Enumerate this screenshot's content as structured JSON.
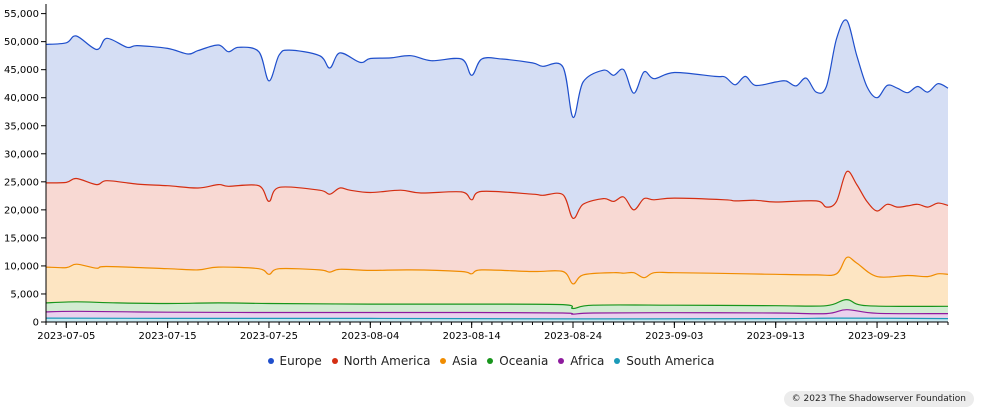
{
  "chart_data": {
    "type": "area",
    "stacked": true,
    "x_start": "2023-07-03",
    "x_end": "2023-09-30",
    "x_ticks": [
      "2023-07-05",
      "2023-07-15",
      "2023-07-25",
      "2023-08-04",
      "2023-08-14",
      "2023-08-24",
      "2023-09-03",
      "2023-09-13",
      "2023-09-23"
    ],
    "ylim": [
      0,
      56000
    ],
    "y_ticks": [
      0,
      5000,
      10000,
      15000,
      20000,
      25000,
      30000,
      35000,
      40000,
      45000,
      50000,
      55000
    ],
    "y_tick_labels": [
      "0",
      "5,000",
      "10,000",
      "15,000",
      "20,000",
      "25,000",
      "30,000",
      "35,000",
      "40,000",
      "45,000",
      "50,000",
      "55,000"
    ],
    "series": [
      {
        "name": "South America",
        "color": "#1b9ab8",
        "fill": "#c7e9f1",
        "points": [
          [
            "2023-07-03",
            700
          ],
          [
            "2023-07-15",
            650
          ],
          [
            "2023-08-04",
            650
          ],
          [
            "2023-08-24",
            550
          ],
          [
            "2023-09-13",
            600
          ],
          [
            "2023-09-19",
            700
          ],
          [
            "2023-09-30",
            600
          ]
        ]
      },
      {
        "name": "Africa",
        "color": "#8e1b9e",
        "fill": "#ead1ed",
        "points": [
          [
            "2023-07-03",
            1800
          ],
          [
            "2023-07-06",
            1900
          ],
          [
            "2023-07-15",
            1750
          ],
          [
            "2023-07-25",
            1700
          ],
          [
            "2023-08-04",
            1700
          ],
          [
            "2023-08-14",
            1700
          ],
          [
            "2023-08-23",
            1600
          ],
          [
            "2023-08-24",
            1400
          ],
          [
            "2023-08-26",
            1600
          ],
          [
            "2023-09-03",
            1650
          ],
          [
            "2023-09-13",
            1600
          ],
          [
            "2023-09-18",
            1500
          ],
          [
            "2023-09-20",
            2200
          ],
          [
            "2023-09-23",
            1550
          ],
          [
            "2023-09-30",
            1500
          ]
        ]
      },
      {
        "name": "Oceania",
        "color": "#18951c",
        "fill": "#d2ecd2",
        "points": [
          [
            "2023-07-03",
            3400
          ],
          [
            "2023-07-06",
            3600
          ],
          [
            "2023-07-10",
            3400
          ],
          [
            "2023-07-15",
            3300
          ],
          [
            "2023-07-20",
            3400
          ],
          [
            "2023-07-25",
            3300
          ],
          [
            "2023-08-04",
            3200
          ],
          [
            "2023-08-14",
            3200
          ],
          [
            "2023-08-23",
            3100
          ],
          [
            "2023-08-24",
            2400
          ],
          [
            "2023-08-26",
            3000
          ],
          [
            "2023-09-03",
            3000
          ],
          [
            "2023-09-13",
            2900
          ],
          [
            "2023-09-18",
            2900
          ],
          [
            "2023-09-20",
            4000
          ],
          [
            "2023-09-22",
            2900
          ],
          [
            "2023-09-30",
            2800
          ]
        ]
      },
      {
        "name": "Asia",
        "color": "#f08c00",
        "fill": "#fde5c2",
        "points": [
          [
            "2023-07-03",
            9800
          ],
          [
            "2023-07-05",
            9700
          ],
          [
            "2023-07-06",
            10300
          ],
          [
            "2023-07-08",
            9600
          ],
          [
            "2023-07-09",
            9900
          ],
          [
            "2023-07-15",
            9500
          ],
          [
            "2023-07-18",
            9300
          ],
          [
            "2023-07-20",
            9800
          ],
          [
            "2023-07-24",
            9500
          ],
          [
            "2023-07-25",
            8500
          ],
          [
            "2023-07-26",
            9500
          ],
          [
            "2023-07-30",
            9300
          ],
          [
            "2023-07-31",
            8900
          ],
          [
            "2023-08-01",
            9400
          ],
          [
            "2023-08-04",
            9200
          ],
          [
            "2023-08-08",
            9300
          ],
          [
            "2023-08-13",
            9000
          ],
          [
            "2023-08-14",
            8600
          ],
          [
            "2023-08-15",
            9300
          ],
          [
            "2023-08-20",
            9000
          ],
          [
            "2023-08-23",
            9000
          ],
          [
            "2023-08-24",
            6800
          ],
          [
            "2023-08-25",
            8400
          ],
          [
            "2023-08-28",
            8800
          ],
          [
            "2023-08-29",
            8700
          ],
          [
            "2023-08-30",
            8800
          ],
          [
            "2023-08-31",
            7900
          ],
          [
            "2023-09-01",
            8800
          ],
          [
            "2023-09-03",
            8800
          ],
          [
            "2023-09-10",
            8600
          ],
          [
            "2023-09-13",
            8500
          ],
          [
            "2023-09-17",
            8400
          ],
          [
            "2023-09-19",
            8600
          ],
          [
            "2023-09-20",
            11500
          ],
          [
            "2023-09-21",
            10500
          ],
          [
            "2023-09-23",
            8100
          ],
          [
            "2023-09-26",
            8300
          ],
          [
            "2023-09-28",
            8100
          ],
          [
            "2023-09-29",
            8600
          ],
          [
            "2023-09-30",
            8500
          ]
        ]
      },
      {
        "name": "North America",
        "color": "#d42e12",
        "fill": "#f8d9d3",
        "points": [
          [
            "2023-07-03",
            24800
          ],
          [
            "2023-07-05",
            24900
          ],
          [
            "2023-07-06",
            25600
          ],
          [
            "2023-07-08",
            24500
          ],
          [
            "2023-07-09",
            25200
          ],
          [
            "2023-07-12",
            24600
          ],
          [
            "2023-07-15",
            24300
          ],
          [
            "2023-07-18",
            23900
          ],
          [
            "2023-07-20",
            24500
          ],
          [
            "2023-07-21",
            24200
          ],
          [
            "2023-07-24",
            24300
          ],
          [
            "2023-07-25",
            21500
          ],
          [
            "2023-07-26",
            24000
          ],
          [
            "2023-07-30",
            23500
          ],
          [
            "2023-07-31",
            22800
          ],
          [
            "2023-08-01",
            23900
          ],
          [
            "2023-08-02",
            23500
          ],
          [
            "2023-08-04",
            23100
          ],
          [
            "2023-08-07",
            23500
          ],
          [
            "2023-08-09",
            23000
          ],
          [
            "2023-08-13",
            23200
          ],
          [
            "2023-08-14",
            21800
          ],
          [
            "2023-08-15",
            23300
          ],
          [
            "2023-08-20",
            22800
          ],
          [
            "2023-08-21",
            22600
          ],
          [
            "2023-08-23",
            22700
          ],
          [
            "2023-08-24",
            18500
          ],
          [
            "2023-08-25",
            21000
          ],
          [
            "2023-08-27",
            22000
          ],
          [
            "2023-08-28",
            21500
          ],
          [
            "2023-08-29",
            22300
          ],
          [
            "2023-08-30",
            20000
          ],
          [
            "2023-08-31",
            22000
          ],
          [
            "2023-09-01",
            21800
          ],
          [
            "2023-09-03",
            22100
          ],
          [
            "2023-09-08",
            21800
          ],
          [
            "2023-09-09",
            21600
          ],
          [
            "2023-09-11",
            21700
          ],
          [
            "2023-09-13",
            21400
          ],
          [
            "2023-09-17",
            21600
          ],
          [
            "2023-09-18",
            20500
          ],
          [
            "2023-09-19",
            21500
          ],
          [
            "2023-09-20",
            26800
          ],
          [
            "2023-09-21",
            24500
          ],
          [
            "2023-09-22",
            21500
          ],
          [
            "2023-09-23",
            19800
          ],
          [
            "2023-09-24",
            21000
          ],
          [
            "2023-09-25",
            20500
          ],
          [
            "2023-09-26",
            20700
          ],
          [
            "2023-09-27",
            21000
          ],
          [
            "2023-09-28",
            20500
          ],
          [
            "2023-09-29",
            21200
          ],
          [
            "2023-09-30",
            20800
          ]
        ]
      },
      {
        "name": "Europe",
        "color": "#1f4fcc",
        "fill": "#d5def4",
        "points": [
          [
            "2023-07-03",
            49500
          ],
          [
            "2023-07-05",
            49800
          ],
          [
            "2023-07-06",
            51000
          ],
          [
            "2023-07-08",
            48600
          ],
          [
            "2023-07-09",
            50600
          ],
          [
            "2023-07-11",
            49000
          ],
          [
            "2023-07-12",
            49300
          ],
          [
            "2023-07-15",
            48800
          ],
          [
            "2023-07-17",
            47800
          ],
          [
            "2023-07-18",
            48400
          ],
          [
            "2023-07-20",
            49400
          ],
          [
            "2023-07-21",
            48200
          ],
          [
            "2023-07-22",
            49000
          ],
          [
            "2023-07-24",
            48200
          ],
          [
            "2023-07-25",
            43000
          ],
          [
            "2023-07-26",
            47600
          ],
          [
            "2023-07-27",
            48500
          ],
          [
            "2023-07-30",
            47500
          ],
          [
            "2023-07-31",
            45300
          ],
          [
            "2023-08-01",
            48000
          ],
          [
            "2023-08-03",
            46300
          ],
          [
            "2023-08-04",
            47000
          ],
          [
            "2023-08-06",
            47100
          ],
          [
            "2023-08-08",
            47500
          ],
          [
            "2023-08-10",
            46600
          ],
          [
            "2023-08-13",
            46900
          ],
          [
            "2023-08-14",
            44000
          ],
          [
            "2023-08-15",
            46900
          ],
          [
            "2023-08-17",
            46900
          ],
          [
            "2023-08-20",
            46200
          ],
          [
            "2023-08-21",
            45600
          ],
          [
            "2023-08-23",
            45500
          ],
          [
            "2023-08-24",
            36500
          ],
          [
            "2023-08-25",
            42800
          ],
          [
            "2023-08-27",
            44900
          ],
          [
            "2023-08-28",
            44000
          ],
          [
            "2023-08-29",
            45000
          ],
          [
            "2023-08-30",
            40800
          ],
          [
            "2023-08-31",
            44600
          ],
          [
            "2023-09-01",
            43400
          ],
          [
            "2023-09-03",
            44500
          ],
          [
            "2023-09-07",
            43800
          ],
          [
            "2023-09-08",
            43700
          ],
          [
            "2023-09-09",
            42300
          ],
          [
            "2023-09-10",
            43800
          ],
          [
            "2023-09-11",
            42200
          ],
          [
            "2023-09-13",
            42800
          ],
          [
            "2023-09-14",
            43000
          ],
          [
            "2023-09-15",
            42100
          ],
          [
            "2023-09-16",
            43500
          ],
          [
            "2023-09-17",
            41000
          ],
          [
            "2023-09-18",
            42000
          ],
          [
            "2023-09-19",
            50500
          ],
          [
            "2023-09-20",
            53800
          ],
          [
            "2023-09-21",
            47500
          ],
          [
            "2023-09-22",
            42000
          ],
          [
            "2023-09-23",
            40000
          ],
          [
            "2023-09-24",
            42200
          ],
          [
            "2023-09-25",
            41700
          ],
          [
            "2023-09-26",
            40900
          ],
          [
            "2023-09-27",
            42000
          ],
          [
            "2023-09-28",
            41000
          ],
          [
            "2023-09-29",
            42500
          ],
          [
            "2023-09-30",
            41700
          ]
        ]
      }
    ],
    "legend_position": "bottom",
    "grid": false
  },
  "legend": [
    {
      "label": "Europe",
      "color": "#1f4fcc"
    },
    {
      "label": "North America",
      "color": "#d42e12"
    },
    {
      "label": "Asia",
      "color": "#f08c00"
    },
    {
      "label": "Oceania",
      "color": "#18951c"
    },
    {
      "label": "Africa",
      "color": "#8e1b9e"
    },
    {
      "label": "South America",
      "color": "#1b9ab8"
    }
  ],
  "footer": {
    "copyright": "© 2023 The Shadowserver Foundation"
  }
}
